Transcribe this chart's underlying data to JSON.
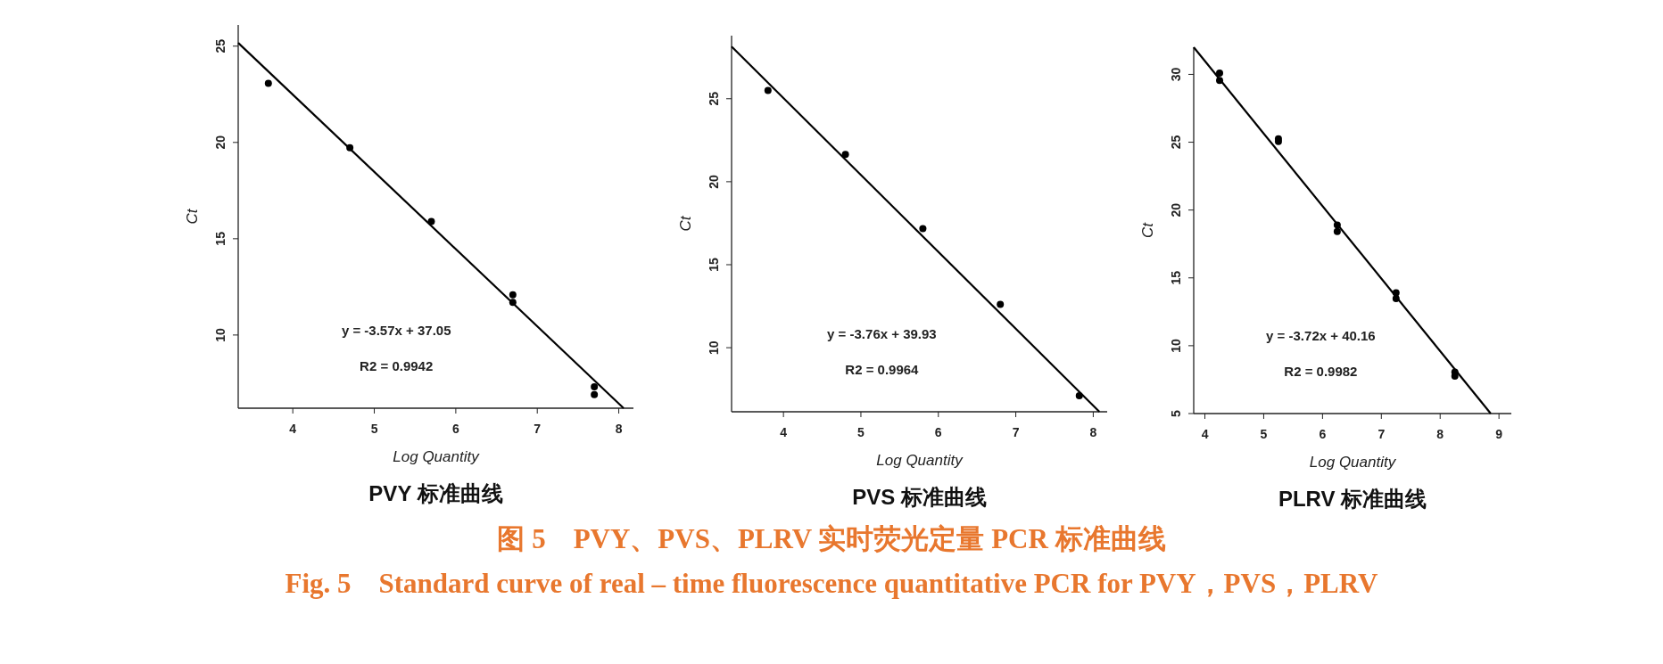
{
  "chart_data": [
    {
      "type": "scatter",
      "title": "PVY 标准曲线",
      "xlabel": "Log Quantity",
      "ylabel": "Ct",
      "xlim": [
        3.33,
        8.18
      ],
      "ylim": [
        6.2,
        26.1
      ],
      "xticks": [
        4,
        5,
        6,
        7,
        8
      ],
      "yticks": [
        10,
        15,
        20,
        25
      ],
      "grid": false,
      "annotations": [
        "y = -3.57x + 37.05",
        "R2 = 0.9942"
      ],
      "series": [
        {
          "type": "scatter",
          "marker": "circle",
          "color": "#000000",
          "x": [
            3.7,
            4.7,
            5.7,
            6.7,
            6.7,
            7.7,
            7.7
          ],
          "values": [
            23.07,
            19.73,
            15.9,
            12.09,
            11.7,
            7.31,
            6.9
          ]
        },
        {
          "type": "line",
          "marker": "none",
          "color": "#000000",
          "x": [
            3.33,
            8.06
          ],
          "values": [
            25.17,
            6.2
          ]
        }
      ]
    },
    {
      "type": "scatter",
      "title": "PVS 标准曲线",
      "xlabel": "Log Quantity",
      "ylabel": "Ct",
      "xlim": [
        3.33,
        8.18
      ],
      "ylim": [
        6.14,
        28.8
      ],
      "xticks": [
        4,
        5,
        6,
        7,
        8
      ],
      "yticks": [
        10,
        15,
        20,
        25
      ],
      "grid": false,
      "annotations": [
        "y = -3.76x + 39.93",
        "R2 = 0.9964"
      ],
      "series": [
        {
          "type": "scatter",
          "marker": "circle",
          "color": "#000000",
          "x": [
            3.8,
            4.8,
            5.8,
            6.8,
            7.82
          ],
          "values": [
            25.5,
            21.64,
            17.18,
            12.61,
            7.1
          ]
        },
        {
          "type": "line",
          "marker": "none",
          "color": "#000000",
          "x": [
            3.33,
            8.08
          ],
          "values": [
            28.14,
            6.14
          ]
        }
      ]
    },
    {
      "type": "scatter",
      "title": "PLRV 标准曲线",
      "xlabel": "Log Quantity",
      "ylabel": "Ct",
      "xlim": [
        3.81,
        9.21
      ],
      "ylim": [
        5,
        32.0
      ],
      "xticks": [
        4,
        5,
        6,
        7,
        8,
        9
      ],
      "yticks": [
        5,
        10,
        15,
        20,
        25,
        30
      ],
      "grid": false,
      "annotations": [
        "y = -3.72x + 40.16",
        "R2 = 0.9982"
      ],
      "series": [
        {
          "type": "scatter",
          "marker": "circle",
          "color": "#000000",
          "x": [
            4.25,
            4.25,
            5.25,
            5.25,
            6.25,
            6.25,
            7.25,
            7.25,
            8.25,
            8.25
          ],
          "values": [
            30.1,
            29.56,
            25.25,
            25.05,
            18.9,
            18.42,
            13.9,
            13.48,
            8.05,
            7.76
          ]
        },
        {
          "type": "line",
          "marker": "none",
          "color": "#000000",
          "x": [
            3.81,
            8.86
          ],
          "values": [
            32.0,
            5
          ]
        }
      ]
    },
    {
      "type": "other",
      "color": "#e8772e",
      "annotations": [
        "图 5　PVY、PVS、PLRV 实时荧光定量 PCR 标准曲线",
        "Fig. 5　Standard curve of real – time fluorescence quantitative PCR for PVY，PVS，PLRV"
      ]
    }
  ]
}
